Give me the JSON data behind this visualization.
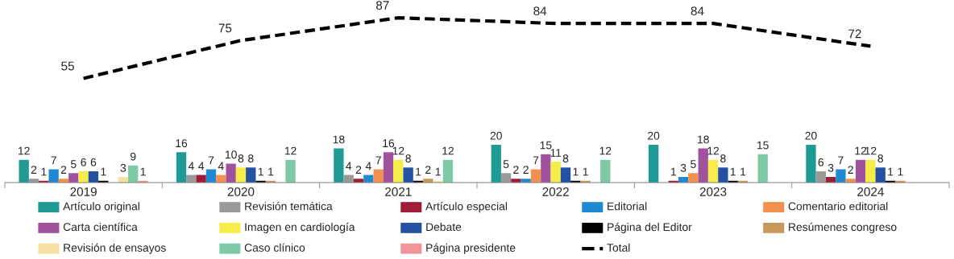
{
  "chart_data": {
    "type": "bar",
    "categories": [
      "2019",
      "2020",
      "2021",
      "2022",
      "2023",
      "2024"
    ],
    "data_labels": true,
    "legend": "bottom",
    "tick_labels": "x",
    "series": [
      {
        "name": "Artículo original",
        "color": "#1f9a94",
        "values": [
          12,
          16,
          18,
          20,
          20,
          20
        ]
      },
      {
        "name": "Revisión temática",
        "color": "#9a9a9a",
        "values": [
          2,
          4,
          4,
          5,
          null,
          6
        ]
      },
      {
        "name": "Artículo especial",
        "color": "#a01c36",
        "values": [
          1,
          4,
          2,
          2,
          1,
          3
        ]
      },
      {
        "name": "Editorial",
        "color": "#1f8ad2",
        "values": [
          7,
          7,
          4,
          2,
          3,
          7
        ]
      },
      {
        "name": "Comentario editorial",
        "color": "#f4904e",
        "values": [
          2,
          4,
          7,
          7,
          5,
          2
        ]
      },
      {
        "name": "Carta científica",
        "color": "#a1529c",
        "values": [
          5,
          10,
          16,
          15,
          18,
          12
        ]
      },
      {
        "name": "Imagen en cardiología",
        "color": "#f6ec4a",
        "values": [
          6,
          8,
          12,
          11,
          12,
          12
        ]
      },
      {
        "name": "Debate",
        "color": "#2452a2",
        "values": [
          6,
          8,
          8,
          8,
          8,
          8
        ]
      },
      {
        "name": "Página del Editor",
        "color": "#000000",
        "values": [
          1,
          1,
          1,
          1,
          1,
          1
        ]
      },
      {
        "name": "Resúmenes congreso",
        "color": "#c8975a",
        "values": [
          null,
          1,
          2,
          1,
          1,
          1
        ]
      },
      {
        "name": "Revisión de ensayos",
        "color": "#f7e0a3",
        "values": [
          3,
          null,
          1,
          null,
          null,
          null
        ]
      },
      {
        "name": "Caso clínico",
        "color": "#7fcaa6",
        "values": [
          9,
          12,
          12,
          12,
          15,
          null
        ]
      },
      {
        "name": "Página presidente",
        "color": "#f0949a",
        "values": [
          1,
          null,
          null,
          null,
          null,
          null
        ]
      },
      {
        "name": "Total",
        "type": "line",
        "line_style": "dashed",
        "marker": "none",
        "color": "#000000",
        "values": [
          55,
          75,
          87,
          84,
          84,
          72
        ]
      }
    ]
  }
}
